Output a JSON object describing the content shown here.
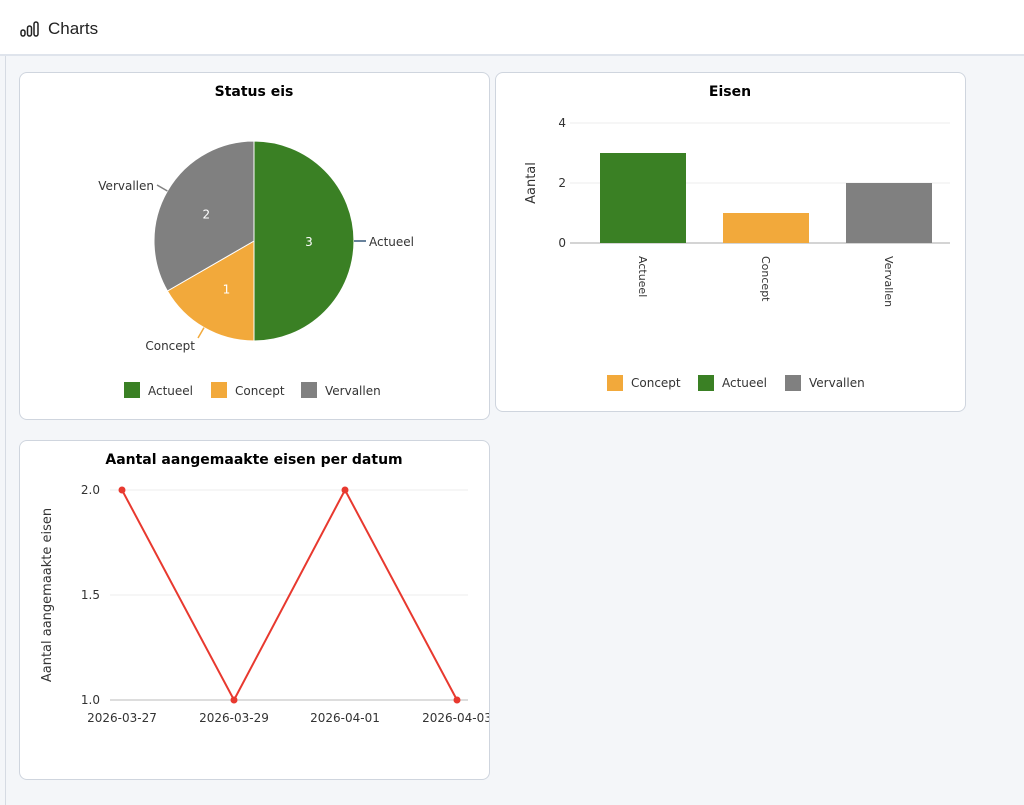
{
  "header": {
    "title": "Charts",
    "icon": "bar-chart-icon"
  },
  "chart_data": [
    {
      "type": "pie",
      "title": "Status eis",
      "categories": [
        "Actueel",
        "Concept",
        "Vervallen"
      ],
      "values": [
        3,
        1,
        2
      ],
      "colors": [
        "#3a8024",
        "#f2a93b",
        "#808080"
      ],
      "legend_position": "bottom"
    },
    {
      "type": "bar",
      "title": "Eisen",
      "ylabel": "Aantal",
      "categories": [
        "Actueel",
        "Concept",
        "Vervallen"
      ],
      "values": [
        3,
        1,
        2
      ],
      "colors": [
        "#3a8024",
        "#f2a93b",
        "#808080"
      ],
      "ylim": [
        0,
        4
      ],
      "yticks": [
        "0",
        "2",
        "4"
      ],
      "legend": [
        "Concept",
        "Actueel",
        "Vervallen"
      ],
      "legend_colors": [
        "#f2a93b",
        "#3a8024",
        "#808080"
      ],
      "legend_position": "bottom",
      "grid": true
    },
    {
      "type": "line",
      "title": "Aantal aangemaakte eisen per datum",
      "ylabel": "Aantal aangemaakte eisen",
      "x": [
        "2026-03-27",
        "2026-03-29",
        "2026-04-01",
        "2026-04-03"
      ],
      "values": [
        2,
        1,
        2,
        1
      ],
      "color": "#e8392f",
      "ylim": [
        1,
        2
      ],
      "yticks": [
        "1.0",
        "1.5",
        "2.0"
      ],
      "grid": true
    }
  ]
}
